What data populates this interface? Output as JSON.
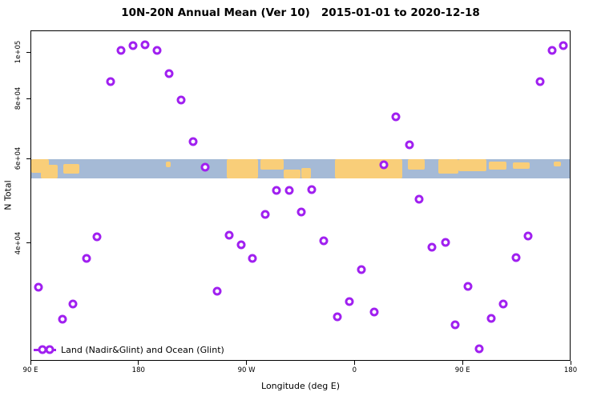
{
  "title": "10N-20N Annual Mean (Ver 10)   2015-01-01 to 2020-12-18",
  "chart_data": {
    "type": "scatter",
    "title": "10N-20N Annual Mean (Ver 10)   2015-01-01 to 2020-12-18",
    "xlabel": "Longitude (deg E)",
    "ylabel": "N Total",
    "legend": {
      "position": "bottom-left",
      "label": "Land (Nadir&Glint) and Ocean (Glint)"
    },
    "point_color": "#A020F0",
    "x_axis": {
      "min": 90,
      "max": 540,
      "wraps_globe": true,
      "ticks": [
        {
          "pos": 90,
          "label": "90 E"
        },
        {
          "pos": 180,
          "label": "180"
        },
        {
          "pos": 270,
          "label": "90 W"
        },
        {
          "pos": 360,
          "label": "0"
        },
        {
          "pos": 450,
          "label": "90 E"
        },
        {
          "pos": 540,
          "label": "180"
        }
      ]
    },
    "y_axis": {
      "scale": "log",
      "range": [
        22700,
        111000
      ],
      "ticks": [
        {
          "value": 100000,
          "label": "1e+05"
        },
        {
          "value": 80000,
          "label": "8e+04"
        },
        {
          "value": 60000,
          "label": "6e+04"
        },
        {
          "value": 40000,
          "label": "4e+04"
        }
      ]
    },
    "map_band": {
      "n_top": 60000,
      "n_bottom": 54700,
      "ocean_color": "#A5BAD6",
      "land_color": "#F9CE79",
      "land_patches": [
        {
          "lon0": 90,
          "lon1": 105,
          "top": 0.0,
          "h": 0.7
        },
        {
          "lon0": 98,
          "lon1": 112,
          "top": 0.3,
          "h": 0.7
        },
        {
          "lon0": 117,
          "lon1": 130,
          "top": 0.25,
          "h": 0.5
        },
        {
          "lon0": 202,
          "lon1": 206,
          "top": 0.1,
          "h": 0.3
        },
        {
          "lon0": 253,
          "lon1": 279,
          "top": 0.0,
          "h": 1.0
        },
        {
          "lon0": 281,
          "lon1": 300,
          "top": 0.0,
          "h": 0.55
        },
        {
          "lon0": 300,
          "lon1": 314,
          "top": 0.55,
          "h": 0.45
        },
        {
          "lon0": 315,
          "lon1": 323,
          "top": 0.45,
          "h": 0.55
        },
        {
          "lon0": 343,
          "lon1": 399,
          "top": 0.0,
          "h": 1.0
        },
        {
          "lon0": 404,
          "lon1": 418,
          "top": 0.0,
          "h": 0.55
        },
        {
          "lon0": 429,
          "lon1": 446,
          "top": 0.0,
          "h": 0.75
        },
        {
          "lon0": 446,
          "lon1": 469,
          "top": 0.0,
          "h": 0.6
        },
        {
          "lon0": 471,
          "lon1": 486,
          "top": 0.1,
          "h": 0.45
        },
        {
          "lon0": 491,
          "lon1": 505,
          "top": 0.15,
          "h": 0.35
        },
        {
          "lon0": 525,
          "lon1": 531,
          "top": 0.1,
          "h": 0.25
        }
      ]
    },
    "series": [
      {
        "name": "Land (Nadir&Glint) and Ocean (Glint)",
        "points": [
          [
            96,
            32500
          ],
          [
            116,
            27900
          ],
          [
            125,
            30000
          ],
          [
            136,
            37300
          ],
          [
            145,
            41400
          ],
          [
            156,
            87100
          ],
          [
            165,
            101000
          ],
          [
            175,
            103500
          ],
          [
            185,
            104000
          ],
          [
            195,
            101000
          ],
          [
            205,
            90500
          ],
          [
            215,
            79700
          ],
          [
            225,
            65300
          ],
          [
            235,
            57800
          ],
          [
            245,
            31900
          ],
          [
            255,
            41700
          ],
          [
            265,
            39800
          ],
          [
            274,
            37300
          ],
          [
            285,
            46000
          ],
          [
            294,
            51700
          ],
          [
            305,
            51700
          ],
          [
            315,
            46600
          ],
          [
            324,
            51900
          ],
          [
            334,
            40600
          ],
          [
            345,
            28200
          ],
          [
            355,
            30300
          ],
          [
            365,
            35400
          ],
          [
            376,
            28800
          ],
          [
            384,
            58400
          ],
          [
            394,
            73600
          ],
          [
            405,
            64300
          ],
          [
            413,
            49600
          ],
          [
            424,
            39400
          ],
          [
            435,
            40300
          ],
          [
            443,
            27100
          ],
          [
            454,
            32600
          ],
          [
            463,
            24200
          ],
          [
            473,
            28000
          ],
          [
            483,
            30000
          ],
          [
            494,
            37400
          ],
          [
            504,
            41500
          ],
          [
            514,
            87100
          ],
          [
            524,
            101300
          ],
          [
            533,
            103500
          ]
        ]
      }
    ]
  }
}
